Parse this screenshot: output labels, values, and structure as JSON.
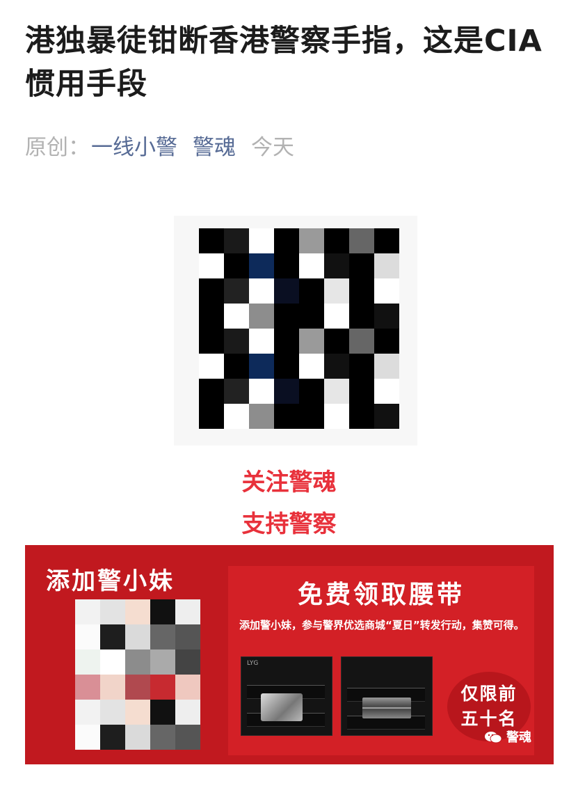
{
  "article": {
    "title": "港独暴徒钳断香港警察手指，这是CIA惯用手段",
    "meta": {
      "prefix": "原创：",
      "author": "一线小警",
      "account": "警魂",
      "date": "今天"
    }
  },
  "qr_code": {
    "icon": "pixelated-qr-code"
  },
  "cta": {
    "line1": "关注警魂",
    "line2": "支持警察",
    "color": "#e8313b"
  },
  "banner": {
    "left_title": "添加警小妹",
    "panel_title": "免费领取腰带",
    "description": "添加警小妹，参与警界优选商城“夏日”转发行动，集赞可得。",
    "badge_line1": "仅限前",
    "badge_line2": "五十名",
    "brand": "警魂",
    "brand_icon": "wechat-icon",
    "photo_caption": "LYG",
    "background": "#c1191f"
  },
  "colors": {
    "link": "#576b95",
    "meta_gray": "#b2b2b2",
    "title": "#1c1c1c"
  }
}
